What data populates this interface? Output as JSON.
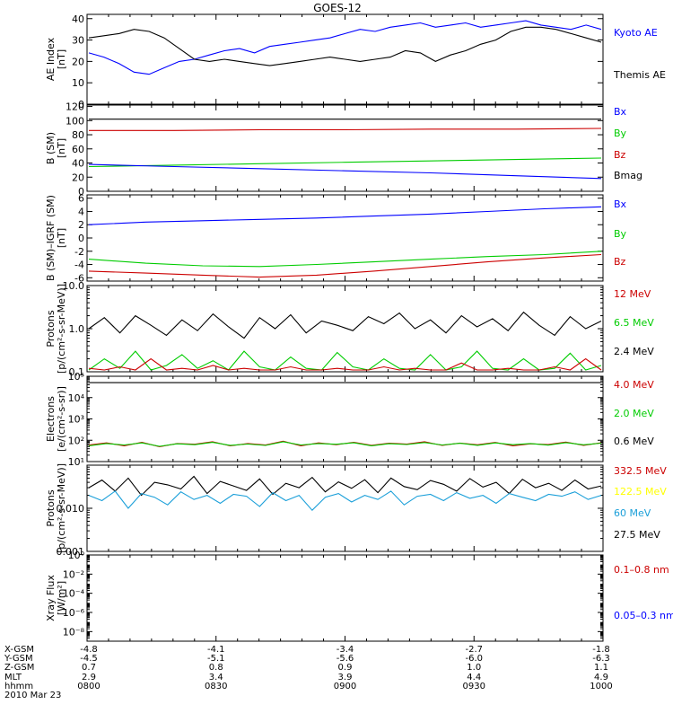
{
  "title": "GOES-12",
  "panels": [
    {
      "id": "ae",
      "ylabel": [
        "AE Index",
        "[nT]"
      ],
      "scale": "linear",
      "ylim": [
        0,
        42
      ],
      "ticks": [
        "0",
        "10",
        "20",
        "30",
        "40"
      ],
      "tick_values": [
        0,
        10,
        20,
        30,
        40
      ],
      "legend": [
        {
          "text": "Kyoto AE",
          "color": "#0000ff"
        },
        {
          "text": "Themis AE",
          "color": "#000000"
        }
      ],
      "series": [
        {
          "name": "Kyoto AE",
          "color": "#0000ff",
          "y": [
            24,
            22,
            19,
            15,
            14,
            17,
            20,
            21,
            23,
            25,
            26,
            24,
            27,
            28,
            29,
            30,
            31,
            33,
            35,
            34,
            36,
            37,
            38,
            36,
            37,
            38,
            36,
            37,
            38,
            39,
            37,
            36,
            35,
            37,
            35
          ]
        },
        {
          "name": "Themis AE",
          "color": "#000000",
          "y": [
            31,
            32,
            33,
            35,
            34,
            31,
            26,
            21,
            20,
            21,
            20,
            19,
            18,
            19,
            20,
            21,
            22,
            21,
            20,
            21,
            22,
            25,
            24,
            20,
            23,
            25,
            28,
            30,
            34,
            36,
            36,
            35,
            33,
            31,
            29
          ]
        }
      ]
    },
    {
      "id": "bfield",
      "ylabel": [
        "B (SM)",
        "[nT]"
      ],
      "scale": "linear",
      "ylim": [
        0,
        122
      ],
      "ticks": [
        "0",
        "20",
        "40",
        "60",
        "80",
        "100",
        "120"
      ],
      "tick_values": [
        0,
        20,
        40,
        60,
        80,
        100,
        120
      ],
      "legend": [
        {
          "text": "Bx",
          "color": "#0000ff"
        },
        {
          "text": "By",
          "color": "#00cc00"
        },
        {
          "text": "Bz",
          "color": "#cc0000"
        },
        {
          "text": "Bmag",
          "color": "#000000"
        }
      ],
      "series": [
        {
          "name": "Bmag",
          "color": "#000000",
          "y": [
            102,
            102,
            102,
            102,
            102,
            102,
            102
          ]
        },
        {
          "name": "Bz",
          "color": "#cc0000",
          "y": [
            86,
            86,
            87,
            87,
            88,
            88,
            89
          ]
        },
        {
          "name": "By",
          "color": "#00cc00",
          "y": [
            35,
            37,
            39,
            41,
            43,
            45,
            47
          ]
        },
        {
          "name": "Bx",
          "color": "#0000ff",
          "y": [
            38,
            35,
            32,
            29,
            26,
            22,
            18
          ]
        }
      ]
    },
    {
      "id": "bdiff",
      "ylabel": [
        "B (SM)–IGRF (SM)",
        "[nT]"
      ],
      "scale": "linear",
      "ylim": [
        -6.5,
        6.5
      ],
      "ticks": [
        "-6",
        "-4",
        "-2",
        "0",
        "2",
        "4",
        "6"
      ],
      "tick_values": [
        -6,
        -4,
        -2,
        0,
        2,
        4,
        6
      ],
      "legend": [
        {
          "text": "Bx",
          "color": "#0000ff"
        },
        {
          "text": "By",
          "color": "#00cc00"
        },
        {
          "text": "Bz",
          "color": "#cc0000"
        }
      ],
      "series": [
        {
          "name": "Bx",
          "color": "#0000ff",
          "y": [
            2.0,
            2.4,
            2.6,
            2.8,
            3.0,
            3.3,
            3.6,
            4.0,
            4.4,
            4.7
          ]
        },
        {
          "name": "By",
          "color": "#00cc00",
          "y": [
            -3.2,
            -3.8,
            -4.2,
            -4.3,
            -4.0,
            -3.6,
            -3.2,
            -2.8,
            -2.5,
            -2.0
          ]
        },
        {
          "name": "Bz",
          "color": "#cc0000",
          "y": [
            -5.0,
            -5.3,
            -5.6,
            -5.9,
            -5.6,
            -5.0,
            -4.3,
            -3.6,
            -3.0,
            -2.5
          ]
        }
      ]
    },
    {
      "id": "protons",
      "ylabel": [
        "Protons",
        "[p/(cm²-s-sr-MeV)]"
      ],
      "scale": "log",
      "ylim": [
        0.1,
        10
      ],
      "ticks": [
        "0.1",
        "1.0",
        "10.0"
      ],
      "tick_values": [
        0.1,
        1,
        10
      ],
      "legend": [
        {
          "text": "12 MeV",
          "color": "#cc0000"
        },
        {
          "text": "6.5 MeV",
          "color": "#00cc00"
        },
        {
          "text": "2.4 MeV",
          "color": "#000000"
        }
      ],
      "series": [
        {
          "name": "2.4 MeV",
          "color": "#000000",
          "y": [
            1.0,
            1.8,
            0.8,
            2.0,
            1.2,
            0.7,
            1.6,
            0.9,
            2.2,
            1.1,
            0.6,
            1.8,
            1.0,
            2.1,
            0.8,
            1.5,
            1.2,
            0.9,
            1.9,
            1.3,
            2.3,
            1.0,
            1.6,
            0.8,
            2.0,
            1.1,
            1.7,
            0.9,
            2.4,
            1.2,
            0.7,
            1.9,
            1.0,
            1.5
          ]
        },
        {
          "name": "6.5 MeV",
          "color": "#00cc00",
          "y": [
            0.11,
            0.2,
            0.12,
            0.3,
            0.11,
            0.14,
            0.25,
            0.12,
            0.18,
            0.11,
            0.3,
            0.13,
            0.11,
            0.22,
            0.12,
            0.11,
            0.28,
            0.13,
            0.11,
            0.2,
            0.12,
            0.11,
            0.25,
            0.11,
            0.13,
            0.3,
            0.12,
            0.11,
            0.2,
            0.11,
            0.12,
            0.27,
            0.11,
            0.14
          ]
        },
        {
          "name": "12 MeV",
          "color": "#cc0000",
          "y": [
            0.12,
            0.11,
            0.13,
            0.11,
            0.2,
            0.11,
            0.12,
            0.11,
            0.14,
            0.11,
            0.12,
            0.11,
            0.11,
            0.13,
            0.11,
            0.11,
            0.12,
            0.11,
            0.11,
            0.13,
            0.11,
            0.12,
            0.11,
            0.11,
            0.16,
            0.11,
            0.11,
            0.12,
            0.11,
            0.11,
            0.13,
            0.11,
            0.2,
            0.11
          ]
        }
      ]
    },
    {
      "id": "electrons",
      "ylabel": [
        "Electrons",
        "[e/(cm²-s-sr)]"
      ],
      "scale": "log",
      "ylim": [
        10,
        100000
      ],
      "ticks": [
        "10¹",
        "10²",
        "10³",
        "10⁴",
        "10⁵"
      ],
      "tick_values": [
        10,
        100,
        1000,
        10000,
        100000
      ],
      "legend": [
        {
          "text": "4.0 MeV",
          "color": "#cc0000"
        },
        {
          "text": "2.0 MeV",
          "color": "#00cc00"
        },
        {
          "text": "0.6 MeV",
          "color": "#000000"
        }
      ],
      "series": [
        {
          "name": "0.6 MeV",
          "color": "#000000",
          "y": [
            50000,
            50000,
            50000,
            50000,
            50000,
            50000,
            50000
          ]
        },
        {
          "name": "4.0 MeV",
          "color": "#cc0000",
          "y": [
            60,
            75,
            55,
            80,
            50,
            70,
            65,
            85,
            55,
            70,
            60,
            90,
            55,
            75,
            62,
            80,
            58,
            72,
            66,
            85,
            57,
            74,
            61,
            79,
            55,
            68,
            63,
            82,
            58,
            76
          ]
        },
        {
          "name": "2.0 MeV",
          "color": "#00cc00",
          "y": [
            55,
            70,
            60,
            75,
            52,
            68,
            62,
            80,
            58,
            66,
            57,
            85,
            60,
            70,
            65,
            76,
            55,
            69,
            63,
            78,
            60,
            72,
            58,
            75,
            62,
            70,
            59,
            77,
            61,
            73
          ]
        }
      ]
    },
    {
      "id": "hiprotons",
      "ylabel": [
        "Protons",
        "[p/(cm²-s-sr-MeV)]"
      ],
      "scale": "log",
      "ylim": [
        0.001,
        0.1
      ],
      "ticks": [
        "0.001",
        "0.010"
      ],
      "tick_values": [
        0.001,
        0.01
      ],
      "legend": [
        {
          "text": "332.5 MeV",
          "color": "#cc0000"
        },
        {
          "text": "122.5 MeV",
          "color": "#ffff00"
        },
        {
          "text": "60 MeV",
          "color": "#1a9fd9"
        },
        {
          "text": "27.5 MeV",
          "color": "#000000"
        }
      ],
      "series": [
        {
          "name": "27.5 MeV",
          "color": "#000000",
          "y": [
            0.03,
            0.045,
            0.025,
            0.05,
            0.02,
            0.04,
            0.035,
            0.028,
            0.055,
            0.022,
            0.042,
            0.033,
            0.026,
            0.048,
            0.021,
            0.038,
            0.03,
            0.052,
            0.024,
            0.041,
            0.029,
            0.046,
            0.023,
            0.05,
            0.032,
            0.027,
            0.044,
            0.036,
            0.025,
            0.049,
            0.031,
            0.04,
            0.022,
            0.047,
            0.03,
            0.038,
            0.026,
            0.045,
            0.028,
            0.033
          ]
        },
        {
          "name": "60 MeV",
          "color": "#1a9fd9",
          "y": [
            0.02,
            0.015,
            0.025,
            0.01,
            0.022,
            0.018,
            0.012,
            0.024,
            0.016,
            0.02,
            0.013,
            0.021,
            0.019,
            0.011,
            0.023,
            0.015,
            0.02,
            0.009,
            0.018,
            0.022,
            0.014,
            0.02,
            0.016,
            0.025,
            0.012,
            0.019,
            0.021,
            0.015,
            0.023,
            0.017,
            0.02,
            0.013,
            0.022,
            0.018,
            0.015,
            0.021,
            0.019,
            0.024,
            0.016,
            0.02
          ]
        }
      ]
    },
    {
      "id": "xray",
      "ylabel": [
        "Xray Flux",
        "[W/m²]"
      ],
      "scale": "log",
      "ylim": [
        1e-09,
        1
      ],
      "ticks": [
        "10⁻⁸",
        "10⁻⁶",
        "10⁻⁴",
        "10⁻²",
        "10⁰"
      ],
      "tick_values": [
        1e-08,
        1e-06,
        0.0001,
        0.01,
        1
      ],
      "legend": [
        {
          "text": "0.1–0.8 nm",
          "color": "#cc0000"
        },
        {
          "text": "0.05–0.3 nm",
          "color": "#0000ff"
        }
      ],
      "series": []
    }
  ],
  "xaxis": {
    "rows": [
      {
        "label": "X-GSM",
        "values": [
          "-4.8",
          "-4.1",
          "-3.4",
          "-2.7",
          "-1.8"
        ]
      },
      {
        "label": "Y-GSM",
        "values": [
          "-4.5",
          "-5.1",
          "-5.6",
          "-6.0",
          "-6.3"
        ]
      },
      {
        "label": "Z-GSM",
        "values": [
          "0.7",
          "0.8",
          "0.9",
          "1.0",
          "1.1"
        ]
      },
      {
        "label": "MLT",
        "values": [
          "2.9",
          "3.4",
          "3.9",
          "4.4",
          "4.9"
        ]
      },
      {
        "label": "hhmm",
        "values": [
          "0800",
          "0830",
          "0900",
          "0930",
          "1000"
        ]
      }
    ],
    "date": "2010 Mar 23"
  }
}
